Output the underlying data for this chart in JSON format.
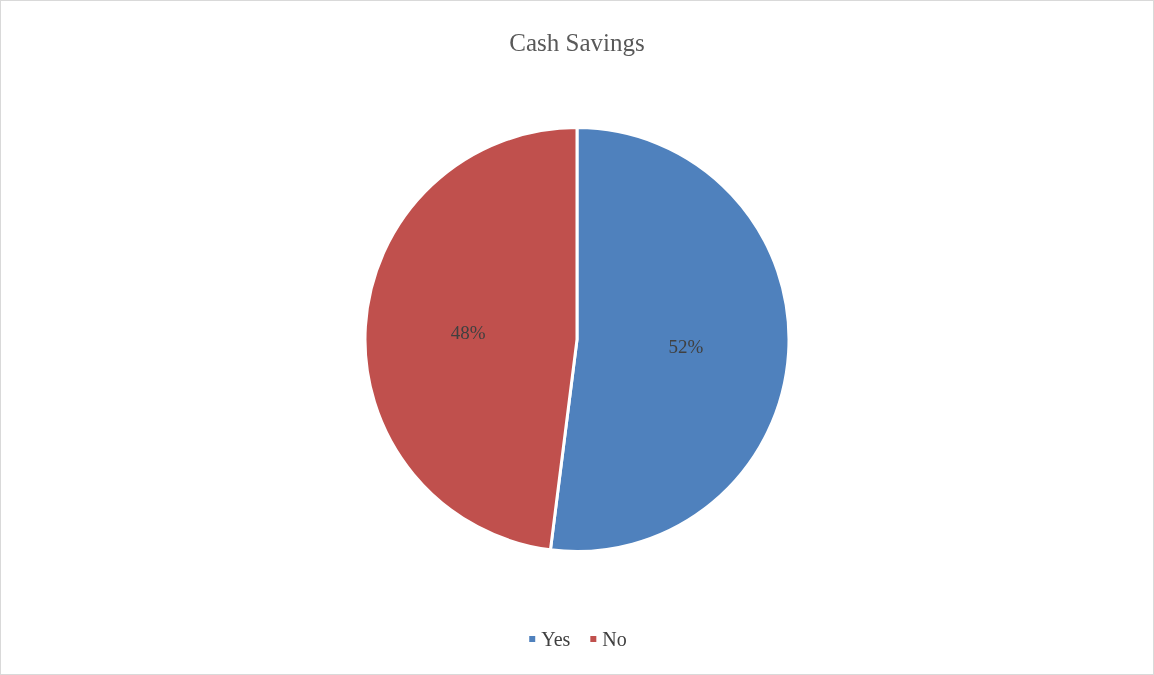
{
  "chart_data": {
    "type": "pie",
    "title": "Cash Savings",
    "categories": [
      "Yes",
      "No"
    ],
    "values": [
      52,
      48
    ],
    "colors": [
      "#4f81bd",
      "#c0504d"
    ],
    "value_labels": [
      "52%",
      "48%"
    ],
    "legend": "bottom"
  }
}
